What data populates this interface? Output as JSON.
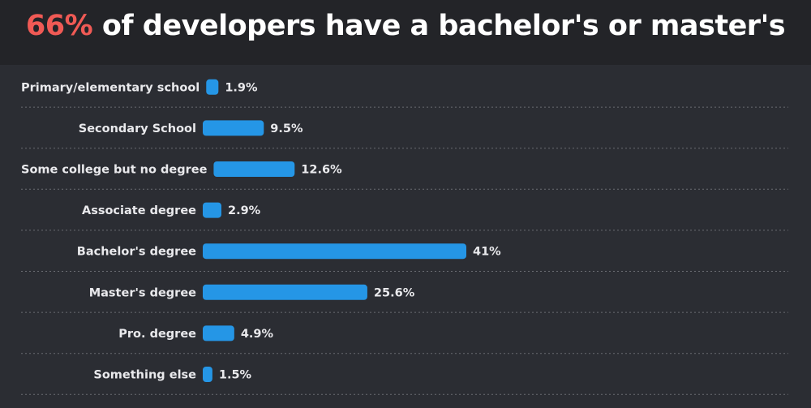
{
  "title": {
    "highlight": "66%",
    "rest": " of developers have a bachelor's or master's"
  },
  "chart_data": {
    "type": "bar",
    "orientation": "horizontal",
    "title": "66% of developers have a bachelor's or master's",
    "categories": [
      "Primary/elementary school",
      "Secondary School",
      "Some college but no degree",
      "Associate degree",
      "Bachelor's degree",
      "Master's degree",
      "Pro. degree",
      "Something else"
    ],
    "values": [
      1.9,
      9.5,
      12.6,
      2.9,
      41,
      25.6,
      4.9,
      1.5
    ],
    "value_labels": [
      "1.9%",
      "9.5%",
      "12.6%",
      "2.9%",
      "41%",
      "25.6%",
      "4.9%",
      "1.5%"
    ],
    "unit": "%",
    "xlim": [
      0,
      41
    ],
    "grid": false,
    "legend": "none",
    "colors": {
      "bar": "#2596e6",
      "background": "#2b2d33",
      "title_band": "#232428",
      "highlight": "#f05a55",
      "text": "#e9e9ec"
    }
  }
}
